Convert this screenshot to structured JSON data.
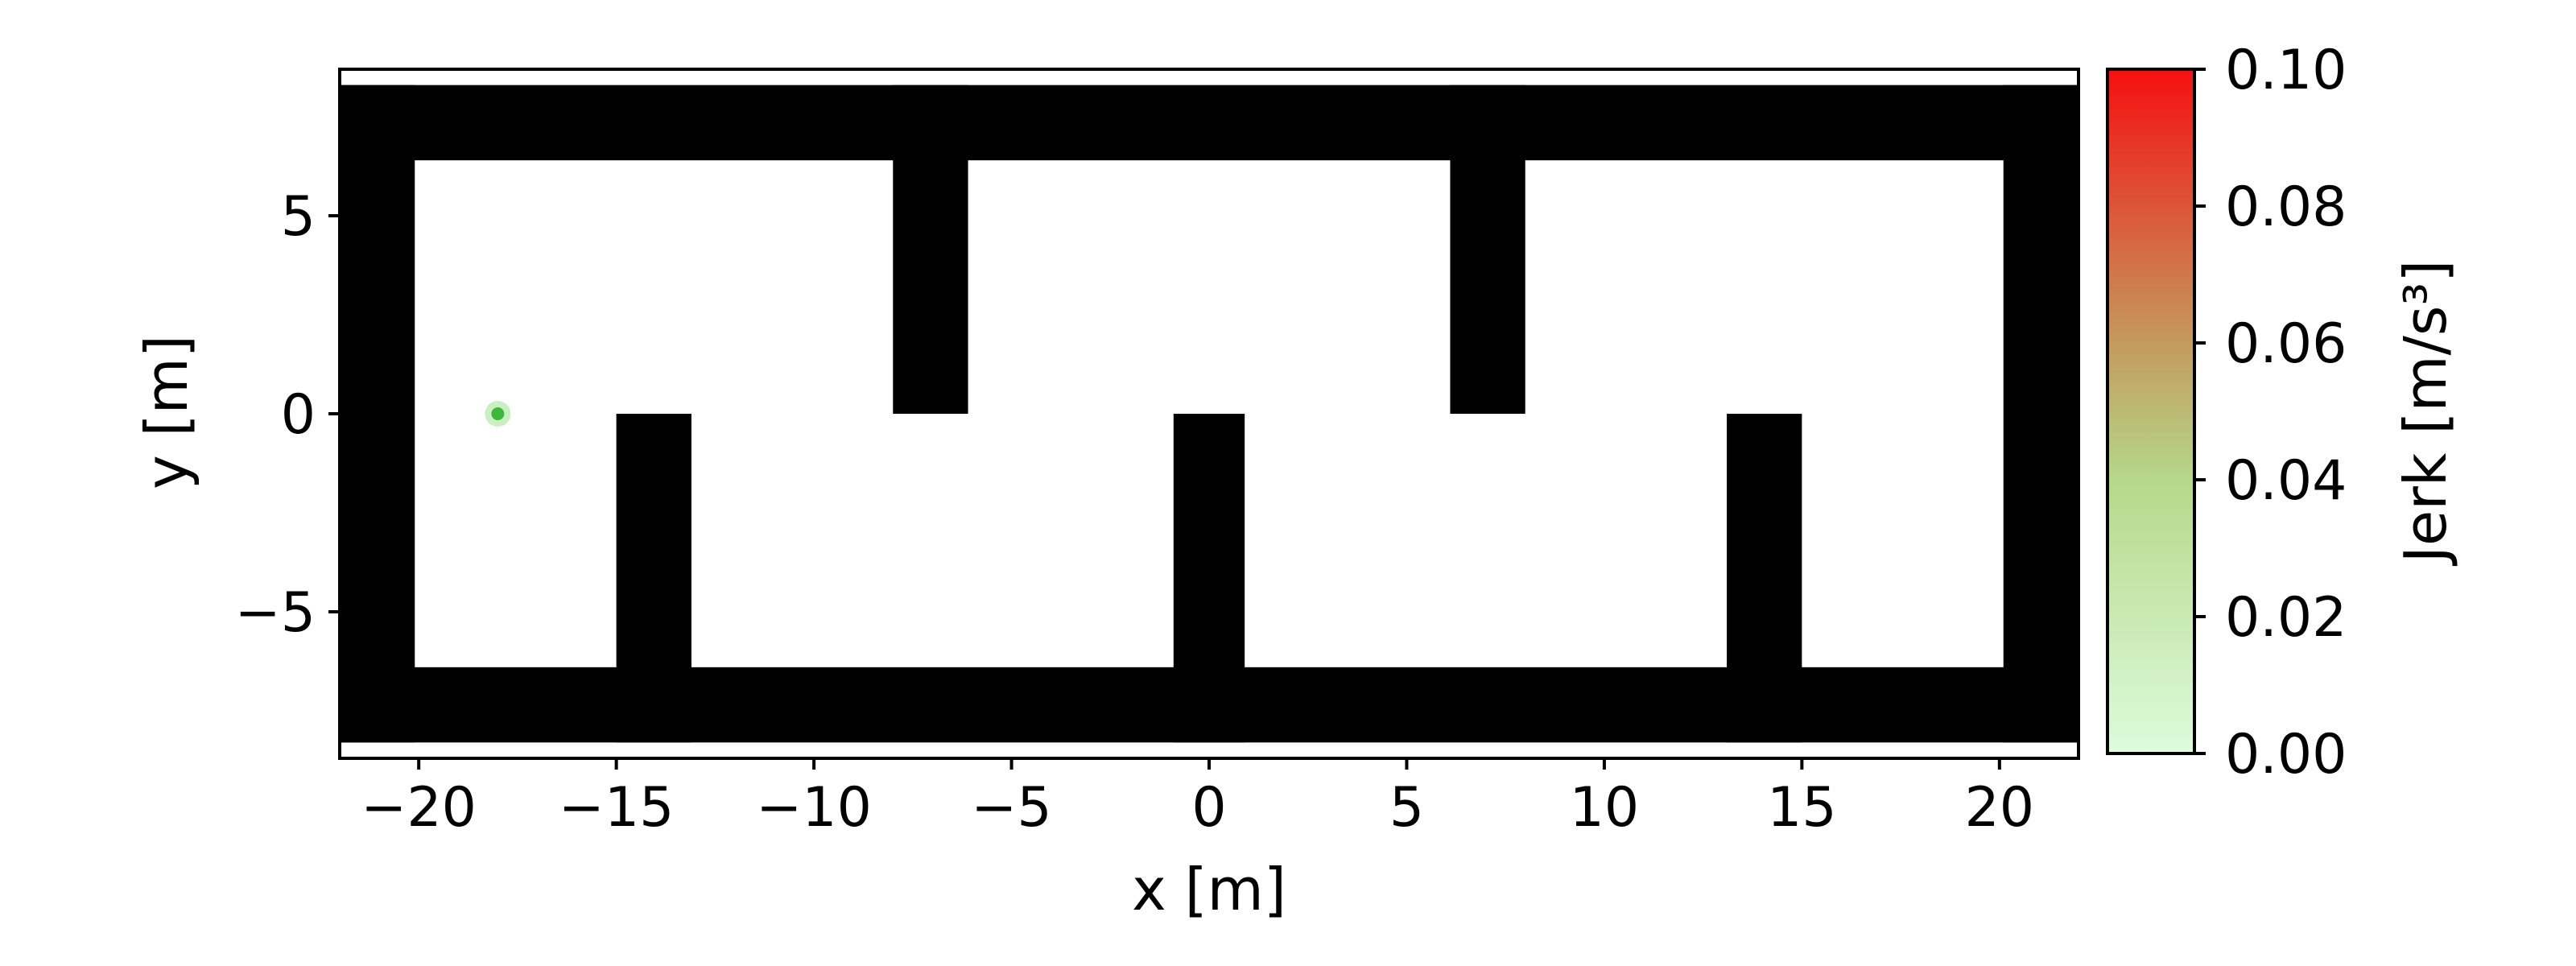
{
  "chart_data": {
    "type": "scatter",
    "xlabel": "x [m]",
    "ylabel": "y [m]",
    "xlim": [
      -22,
      22
    ],
    "ylim": [
      -8.7,
      8.7
    ],
    "x_ticks": [
      {
        "value": -20,
        "label": "−20"
      },
      {
        "value": -15,
        "label": "−15"
      },
      {
        "value": -10,
        "label": "−10"
      },
      {
        "value": -5,
        "label": "−5"
      },
      {
        "value": 0,
        "label": "0"
      },
      {
        "value": 5,
        "label": "5"
      },
      {
        "value": 10,
        "label": "10"
      },
      {
        "value": 15,
        "label": "15"
      },
      {
        "value": 20,
        "label": "20"
      }
    ],
    "y_ticks": [
      {
        "value": -5,
        "label": "−5"
      },
      {
        "value": 0,
        "label": "0"
      },
      {
        "value": 5,
        "label": "5"
      }
    ],
    "grid": false,
    "obstacles": [
      {
        "x0": -22,
        "x1": 22,
        "y0": 6.4,
        "y1": 8.3
      },
      {
        "x0": -22,
        "x1": 22,
        "y0": -8.3,
        "y1": -6.4
      },
      {
        "x0": -22,
        "x1": -20.1,
        "y0": -8.3,
        "y1": 8.3
      },
      {
        "x0": 20.1,
        "x1": 22,
        "y0": -8.3,
        "y1": 8.3
      },
      {
        "x0": -15,
        "x1": -13.1,
        "y0": -8.3,
        "y1": 0
      },
      {
        "x0": -8,
        "x1": -6.1,
        "y0": 0,
        "y1": 8.3
      },
      {
        "x0": -0.9,
        "x1": 0.9,
        "y0": -8.3,
        "y1": 0
      },
      {
        "x0": 6.1,
        "x1": 8,
        "y0": 0,
        "y1": 8.3
      },
      {
        "x0": 13.1,
        "x1": 15,
        "y0": -8.3,
        "y1": 0
      }
    ],
    "points": [
      {
        "x": -18,
        "y": 0,
        "jerk": 0.02
      }
    ],
    "colorbar": {
      "label": "Jerk [m/s³]",
      "min": 0,
      "max": 0.1,
      "ticks": [
        {
          "value": 0.0,
          "label": "0.00"
        },
        {
          "value": 0.02,
          "label": "0.02"
        },
        {
          "value": 0.04,
          "label": "0.04"
        },
        {
          "value": 0.06,
          "label": "0.06"
        },
        {
          "value": 0.08,
          "label": "0.08"
        },
        {
          "value": 0.1,
          "label": "0.10"
        }
      ],
      "colors": [
        "#dcfcdc",
        "#b5d88a",
        "#c49a5e",
        "#f51010"
      ]
    },
    "obstacle_color": "#000000",
    "point_color": "#3cb83c",
    "point_halo_color": "#c8f0c0"
  }
}
